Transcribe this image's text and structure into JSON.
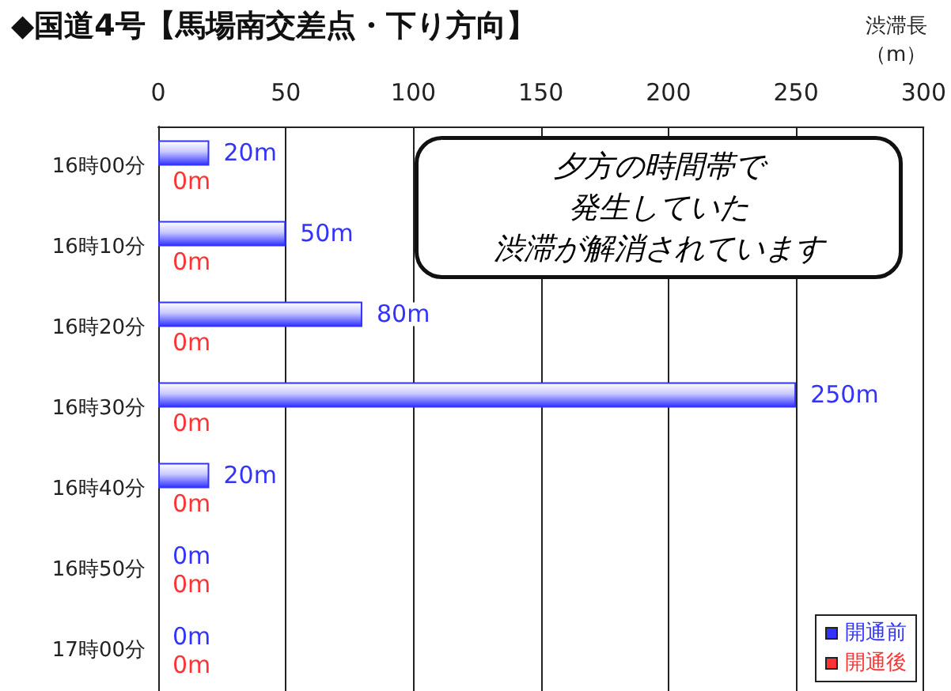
{
  "chart_data": {
    "type": "bar",
    "orientation": "horizontal",
    "title": "◆国道4号【馬場南交差点・下り方向】",
    "xlabel": "渋滞長（m）",
    "categories": [
      "16時00分",
      "16時10分",
      "16時20分",
      "16時30分",
      "16時40分",
      "16時50分",
      "17時00分"
    ],
    "series": [
      {
        "name": "開通前",
        "color": "#3333ff",
        "values": [
          20,
          50,
          80,
          250,
          20,
          0,
          0
        ],
        "value_labels": [
          "20m",
          "50m",
          "80m",
          "250m",
          "20m",
          "0m",
          "0m"
        ]
      },
      {
        "name": "開通後",
        "color": "#ff3333",
        "values": [
          0,
          0,
          0,
          0,
          0,
          0,
          0
        ],
        "value_labels": [
          "0m",
          "0m",
          "0m",
          "0m",
          "0m",
          "0m",
          "0m"
        ]
      }
    ],
    "xlim": [
      0,
      300
    ],
    "xticks": [
      0,
      50,
      100,
      150,
      200,
      250,
      300
    ],
    "grid": "x",
    "legend": "bottom right",
    "annotations": [
      "夕方の時間帯で",
      "発生していた",
      "渋滞が解消",
      "されています"
    ]
  }
}
